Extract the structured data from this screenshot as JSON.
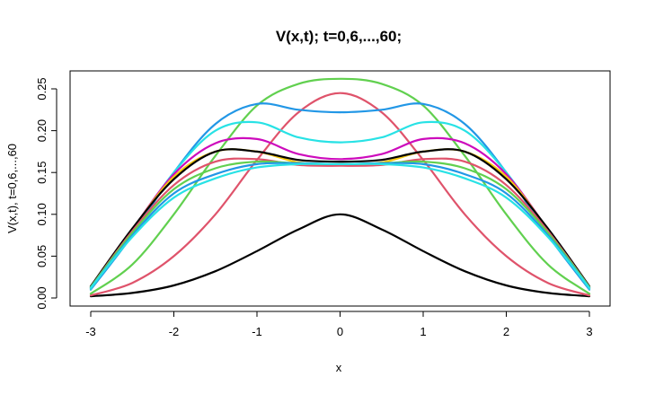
{
  "chart_data": {
    "type": "line",
    "title": "V(x,t); t=0,6,...,60;",
    "xlabel": "x",
    "ylabel": "V(x,t), t=0,6,...,60",
    "xlim": [
      -3,
      3
    ],
    "ylim": [
      0,
      0.25
    ],
    "x_ticks": [
      "-3",
      "-2",
      "-1",
      "0",
      "1",
      "2",
      "3"
    ],
    "y_ticks": [
      "0.00",
      "0.05",
      "0.10",
      "0.15",
      "0.20",
      "0.25"
    ],
    "grid": false,
    "legend": "none",
    "x": [
      -3,
      -2.5,
      -2,
      -1.5,
      -1,
      -0.5,
      0,
      0.5,
      1,
      1.5,
      2,
      2.5,
      3
    ],
    "series": [
      {
        "color": "#000000",
        "values": [
          0.002,
          0.006,
          0.015,
          0.032,
          0.056,
          0.082,
          0.1,
          0.082,
          0.056,
          0.032,
          0.015,
          0.006,
          0.002
        ]
      },
      {
        "color": "#DF536B",
        "values": [
          0.003,
          0.018,
          0.05,
          0.1,
          0.165,
          0.222,
          0.245,
          0.222,
          0.165,
          0.1,
          0.05,
          0.018,
          0.003
        ]
      },
      {
        "color": "#61D04F",
        "values": [
          0.005,
          0.04,
          0.1,
          0.17,
          0.23,
          0.256,
          0.262,
          0.256,
          0.23,
          0.17,
          0.1,
          0.04,
          0.005
        ]
      },
      {
        "color": "#2297E6",
        "values": [
          0.01,
          0.075,
          0.15,
          0.208,
          0.232,
          0.225,
          0.222,
          0.225,
          0.232,
          0.208,
          0.15,
          0.075,
          0.01
        ]
      },
      {
        "color": "#28E2E5",
        "values": [
          0.011,
          0.08,
          0.15,
          0.2,
          0.21,
          0.192,
          0.186,
          0.192,
          0.21,
          0.2,
          0.15,
          0.08,
          0.011
        ]
      },
      {
        "color": "#CD0BBC",
        "values": [
          0.012,
          0.082,
          0.148,
          0.185,
          0.19,
          0.172,
          0.166,
          0.172,
          0.19,
          0.185,
          0.148,
          0.082,
          0.012
        ]
      },
      {
        "color": "#F5C710",
        "values": [
          0.012,
          0.082,
          0.145,
          0.175,
          0.175,
          0.162,
          0.16,
          0.162,
          0.175,
          0.175,
          0.145,
          0.082,
          0.012
        ]
      },
      {
        "color": "#000000",
        "values": [
          0.014,
          0.083,
          0.142,
          0.175,
          0.175,
          0.165,
          0.163,
          0.165,
          0.175,
          0.175,
          0.142,
          0.083,
          0.014
        ]
      },
      {
        "color": "#DF536B",
        "values": [
          0.013,
          0.08,
          0.135,
          0.163,
          0.166,
          0.159,
          0.158,
          0.159,
          0.166,
          0.163,
          0.135,
          0.08,
          0.013
        ]
      },
      {
        "color": "#61D04F",
        "values": [
          0.013,
          0.078,
          0.13,
          0.155,
          0.163,
          0.161,
          0.16,
          0.161,
          0.163,
          0.155,
          0.13,
          0.078,
          0.013
        ]
      },
      {
        "color": "#2297E6",
        "values": [
          0.012,
          0.075,
          0.125,
          0.148,
          0.16,
          0.161,
          0.16,
          0.161,
          0.16,
          0.148,
          0.125,
          0.075,
          0.012
        ]
      },
      {
        "color": "#28E2E5",
        "values": [
          0.012,
          0.073,
          0.12,
          0.143,
          0.156,
          0.16,
          0.16,
          0.16,
          0.156,
          0.143,
          0.12,
          0.073,
          0.012
        ]
      }
    ]
  }
}
